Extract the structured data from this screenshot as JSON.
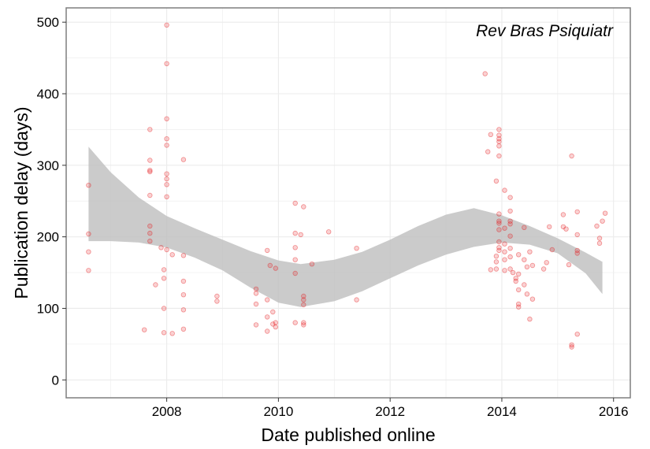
{
  "chart_data": {
    "type": "scatter",
    "title": "",
    "annotation": "Rev Bras Psiquiatr",
    "xlabel": "Date published online",
    "ylabel": "Publication delay (days)",
    "xlim": [
      2006.2,
      2016.3
    ],
    "ylim": [
      -25,
      520
    ],
    "x_ticks": [
      2008,
      2010,
      2012,
      2014,
      2016
    ],
    "y_ticks": [
      0,
      100,
      200,
      300,
      400,
      500
    ],
    "grid": true,
    "legend": "none",
    "colors": {
      "points": "#e41a1c",
      "ribbon": "#bdbdbd",
      "panel_border": "#7f7f7f",
      "grid": "#ebebeb"
    },
    "smooth_band": {
      "x": [
        2006.6,
        2007.0,
        2007.5,
        2008.0,
        2008.5,
        2009.0,
        2009.5,
        2010.0,
        2010.4,
        2011.0,
        2011.5,
        2012.0,
        2012.5,
        2013.0,
        2013.5,
        2014.0,
        2014.5,
        2015.0,
        2015.5,
        2015.8
      ],
      "upper": [
        326,
        290,
        255,
        229,
        212,
        196,
        180,
        167,
        162,
        168,
        179,
        196,
        215,
        231,
        240,
        230,
        215,
        198,
        178,
        165
      ],
      "lower": [
        194,
        194,
        192,
        185,
        171,
        153,
        129,
        108,
        102,
        110,
        124,
        142,
        160,
        175,
        186,
        192,
        189,
        177,
        149,
        120
      ]
    },
    "series": [
      {
        "points": [
          [
            2006.6,
            272
          ],
          [
            2006.6,
            204
          ],
          [
            2006.6,
            179
          ],
          [
            2006.6,
            153
          ],
          [
            2007.6,
            70
          ],
          [
            2007.7,
            350
          ],
          [
            2007.7,
            307
          ],
          [
            2007.7,
            293
          ],
          [
            2007.7,
            291
          ],
          [
            2007.7,
            258
          ],
          [
            2007.7,
            215
          ],
          [
            2007.7,
            205
          ],
          [
            2007.7,
            194
          ],
          [
            2007.8,
            133
          ],
          [
            2007.9,
            185
          ],
          [
            2007.95,
            154
          ],
          [
            2007.95,
            142
          ],
          [
            2007.95,
            100
          ],
          [
            2007.95,
            66
          ],
          [
            2008.0,
            496
          ],
          [
            2008.0,
            442
          ],
          [
            2008.0,
            365
          ],
          [
            2008.0,
            337
          ],
          [
            2008.0,
            328
          ],
          [
            2008.0,
            288
          ],
          [
            2008.0,
            281
          ],
          [
            2008.0,
            273
          ],
          [
            2008.0,
            256
          ],
          [
            2008.0,
            182
          ],
          [
            2008.1,
            175
          ],
          [
            2008.1,
            65
          ],
          [
            2008.3,
            308
          ],
          [
            2008.3,
            174
          ],
          [
            2008.3,
            138
          ],
          [
            2008.3,
            119
          ],
          [
            2008.3,
            98
          ],
          [
            2008.3,
            71
          ],
          [
            2008.9,
            117
          ],
          [
            2008.9,
            110
          ],
          [
            2009.6,
            127
          ],
          [
            2009.6,
            121
          ],
          [
            2009.6,
            106
          ],
          [
            2009.6,
            77
          ],
          [
            2009.8,
            181
          ],
          [
            2009.8,
            112
          ],
          [
            2009.8,
            88
          ],
          [
            2009.8,
            68
          ],
          [
            2009.85,
            160
          ],
          [
            2009.9,
            95
          ],
          [
            2009.9,
            78
          ],
          [
            2009.95,
            156
          ],
          [
            2009.95,
            80
          ],
          [
            2009.95,
            74
          ],
          [
            2010.3,
            247
          ],
          [
            2010.3,
            205
          ],
          [
            2010.3,
            185
          ],
          [
            2010.3,
            168
          ],
          [
            2010.3,
            149
          ],
          [
            2010.3,
            80
          ],
          [
            2010.4,
            203
          ],
          [
            2010.45,
            242
          ],
          [
            2010.45,
            117
          ],
          [
            2010.45,
            112
          ],
          [
            2010.45,
            105
          ],
          [
            2010.45,
            80
          ],
          [
            2010.45,
            77
          ],
          [
            2010.6,
            162
          ],
          [
            2010.9,
            207
          ],
          [
            2011.4,
            184
          ],
          [
            2011.4,
            112
          ],
          [
            2013.7,
            428
          ],
          [
            2013.75,
            319
          ],
          [
            2013.8,
            343
          ],
          [
            2013.8,
            154
          ],
          [
            2013.9,
            278
          ],
          [
            2013.9,
            173
          ],
          [
            2013.9,
            165
          ],
          [
            2013.9,
            155
          ],
          [
            2013.95,
            350
          ],
          [
            2013.95,
            342
          ],
          [
            2013.95,
            337
          ],
          [
            2013.95,
            333
          ],
          [
            2013.95,
            327
          ],
          [
            2013.95,
            313
          ],
          [
            2013.95,
            232
          ],
          [
            2013.95,
            222
          ],
          [
            2013.95,
            219
          ],
          [
            2013.95,
            210
          ],
          [
            2013.95,
            193
          ],
          [
            2013.95,
            185
          ],
          [
            2013.95,
            181
          ],
          [
            2014.05,
            265
          ],
          [
            2014.05,
            212
          ],
          [
            2014.05,
            190
          ],
          [
            2014.05,
            179
          ],
          [
            2014.05,
            168
          ],
          [
            2014.05,
            153
          ],
          [
            2014.15,
            255
          ],
          [
            2014.15,
            236
          ],
          [
            2014.15,
            222
          ],
          [
            2014.15,
            218
          ],
          [
            2014.15,
            201
          ],
          [
            2014.15,
            184
          ],
          [
            2014.15,
            172
          ],
          [
            2014.15,
            155
          ],
          [
            2014.2,
            150
          ],
          [
            2014.25,
            142
          ],
          [
            2014.25,
            138
          ],
          [
            2014.3,
            175
          ],
          [
            2014.3,
            148
          ],
          [
            2014.3,
            126
          ],
          [
            2014.3,
            106
          ],
          [
            2014.3,
            102
          ],
          [
            2014.4,
            213
          ],
          [
            2014.4,
            168
          ],
          [
            2014.4,
            133
          ],
          [
            2014.45,
            158
          ],
          [
            2014.45,
            120
          ],
          [
            2014.5,
            85
          ],
          [
            2014.5,
            179
          ],
          [
            2014.55,
            160
          ],
          [
            2014.55,
            113
          ],
          [
            2014.75,
            155
          ],
          [
            2014.8,
            164
          ],
          [
            2014.85,
            214
          ],
          [
            2014.9,
            182
          ],
          [
            2015.1,
            231
          ],
          [
            2015.1,
            214
          ],
          [
            2015.15,
            211
          ],
          [
            2015.2,
            161
          ],
          [
            2015.25,
            313
          ],
          [
            2015.25,
            49
          ],
          [
            2015.25,
            46
          ],
          [
            2015.35,
            235
          ],
          [
            2015.35,
            203
          ],
          [
            2015.35,
            181
          ],
          [
            2015.35,
            177
          ],
          [
            2015.35,
            64
          ],
          [
            2015.7,
            215
          ],
          [
            2015.75,
            198
          ],
          [
            2015.75,
            191
          ],
          [
            2015.8,
            222
          ],
          [
            2015.85,
            233
          ]
        ]
      }
    ]
  }
}
